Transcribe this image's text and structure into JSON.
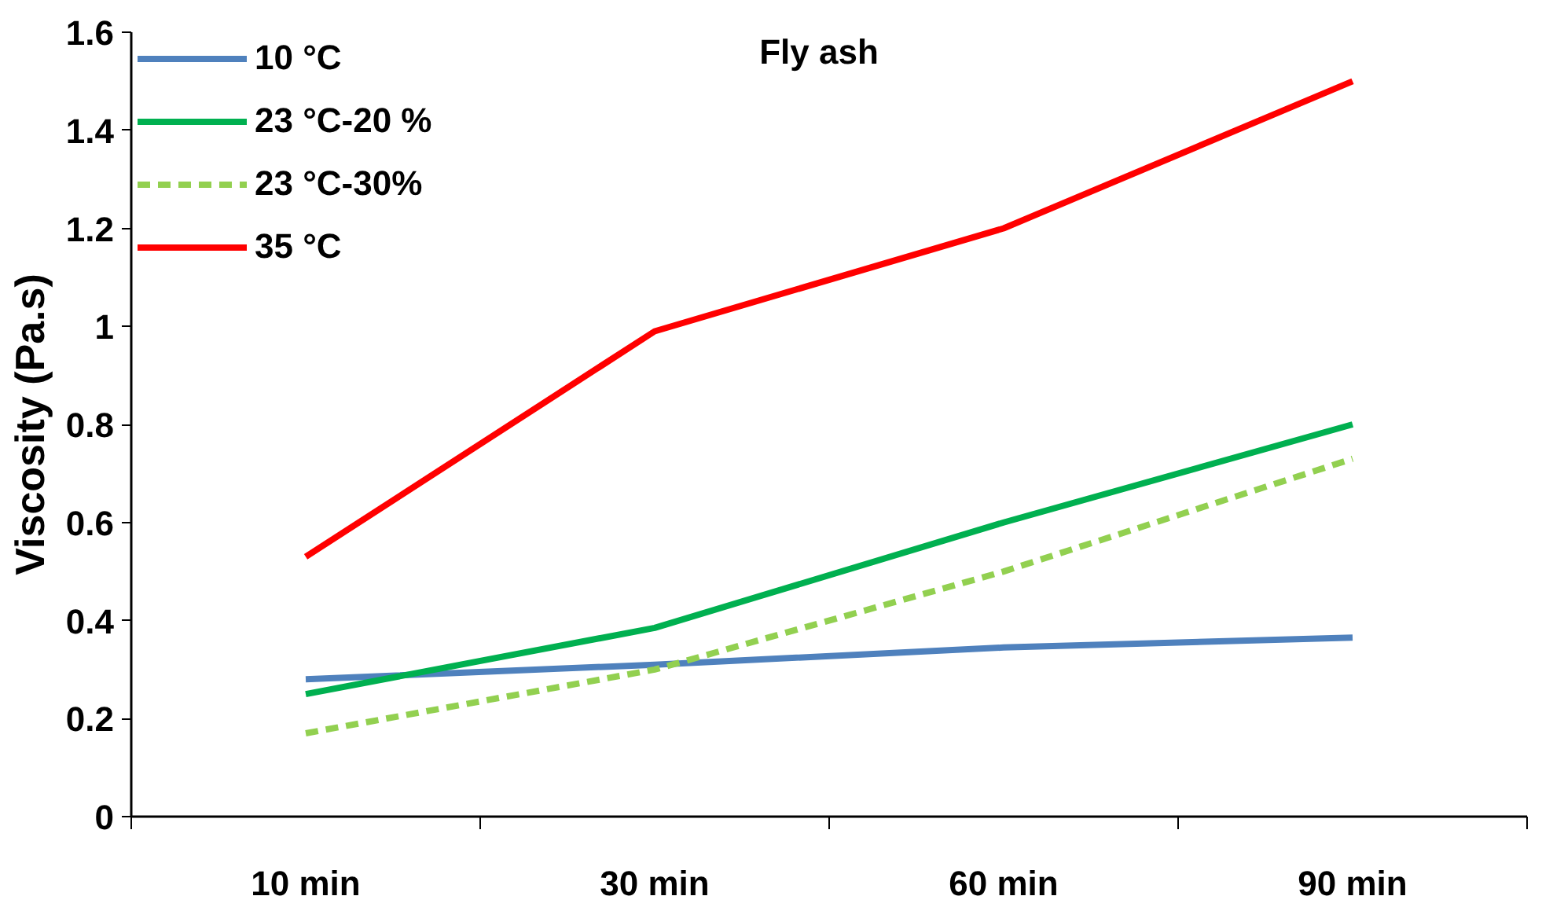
{
  "chart_data": {
    "type": "line",
    "ylabel": "Viscosity (Pa.s)",
    "categories": [
      "10 min",
      "30 min",
      "60 min",
      "90 min"
    ],
    "ylim": [
      0,
      1.6
    ],
    "yticks": [
      0,
      0.2,
      0.4,
      0.6,
      0.8,
      1,
      1.2,
      1.4,
      1.6
    ],
    "grid": false,
    "legend": "top left",
    "marker": "none",
    "annotations": [
      "Fly ash"
    ],
    "series": [
      {
        "name": "10 °C",
        "color": "#4f81bd",
        "values": [
          0.28,
          0.31,
          0.345,
          0.365
        ]
      },
      {
        "name": "23 °C-20 %",
        "color": "#00b050",
        "values": [
          0.25,
          0.385,
          0.6,
          0.8
        ]
      },
      {
        "name": "23 °C-30%",
        "color": "#92d050",
        "line_style": "dashed",
        "values": [
          0.17,
          0.3,
          0.5,
          0.73
        ]
      },
      {
        "name": "35 °C",
        "color": "#ff0000",
        "values": [
          0.53,
          0.99,
          1.2,
          1.5
        ]
      }
    ]
  }
}
